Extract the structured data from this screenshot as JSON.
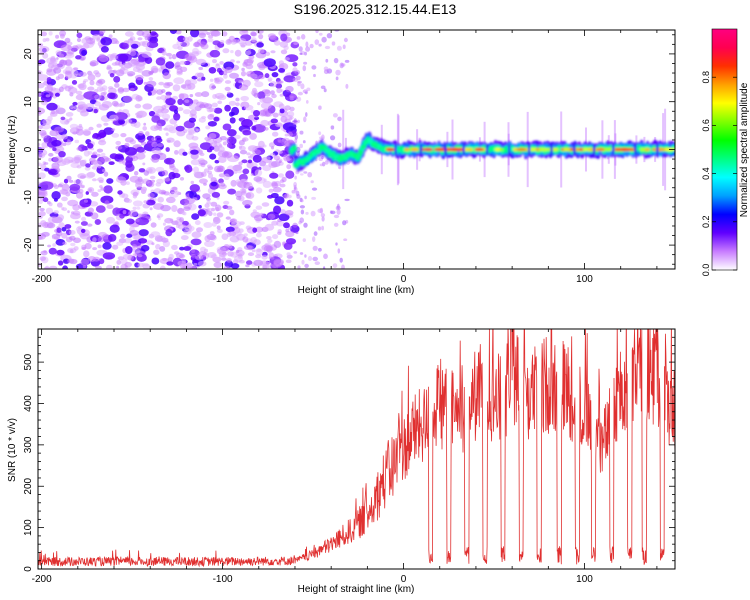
{
  "title": "S196.2025.312.15.44.E13",
  "chart_data": [
    {
      "type": "heatmap",
      "name": "spectrogram",
      "xlabel": "Height of straight line (km)",
      "ylabel": "Frequency (Hz)",
      "xlim": [
        -202,
        150
      ],
      "ylim": [
        -25,
        25
      ],
      "xticks": [
        -200,
        -100,
        0,
        100
      ],
      "yticks": [
        -20,
        -10,
        0,
        10,
        20
      ],
      "noise_region_x": [
        -202,
        -60
      ],
      "sparse_region_x": [
        -60,
        -30
      ],
      "band_center_hz": [
        {
          "x": -60,
          "y": -3
        },
        {
          "x": -55,
          "y": -2.5
        },
        {
          "x": -50,
          "y": -1
        },
        {
          "x": -45,
          "y": 0.5
        },
        {
          "x": -40,
          "y": -1
        },
        {
          "x": -35,
          "y": -2
        },
        {
          "x": -30,
          "y": -1
        },
        {
          "x": -25,
          "y": -1.5
        },
        {
          "x": -20,
          "y": 2
        },
        {
          "x": -15,
          "y": 1
        },
        {
          "x": -10,
          "y": 0
        },
        {
          "x": 0,
          "y": 0
        },
        {
          "x": 150,
          "y": 0
        }
      ],
      "colorbar": {
        "label": "Normalized spectral amplitude",
        "ticks": [
          "0.0",
          "0.2",
          "0.4",
          "0.6",
          "0.8"
        ],
        "range": [
          0,
          1
        ],
        "colors": [
          "#ffffff",
          "#c87dff",
          "#6000ff",
          "#0000ff",
          "#00a0ff",
          "#00ffff",
          "#00ff80",
          "#00ff00",
          "#80ff00",
          "#ffff00",
          "#ffa000",
          "#ff3000",
          "#ff0050",
          "#ff0080"
        ]
      }
    },
    {
      "type": "line",
      "name": "snr",
      "xlabel": "Height of straight line (km)",
      "ylabel": "SNR (10 * v/v)",
      "xlim": [
        -202,
        150
      ],
      "ylim": [
        0,
        580
      ],
      "xticks": [
        -200,
        -100,
        0,
        100
      ],
      "yticks": [
        0,
        100,
        200,
        300,
        400,
        500
      ],
      "color": "#e03030",
      "series": [
        {
          "name": "SNR",
          "x": [
            -202,
            -150,
            -100,
            -60,
            -50,
            -40,
            -30,
            -20,
            -10,
            0,
            5,
            15,
            20,
            30,
            40,
            45,
            55,
            60,
            70,
            80,
            90,
            100,
            110,
            120,
            130,
            140,
            150
          ],
          "y": [
            18,
            18,
            18,
            20,
            35,
            60,
            90,
            130,
            220,
            290,
            330,
            360,
            400,
            370,
            420,
            440,
            400,
            480,
            420,
            450,
            440,
            380,
            300,
            420,
            480,
            470,
            380
          ]
        }
      ],
      "dropouts_x": [
        15,
        25,
        35,
        45,
        55,
        65,
        75,
        86,
        96,
        105,
        115,
        125,
        133,
        143
      ]
    }
  ]
}
